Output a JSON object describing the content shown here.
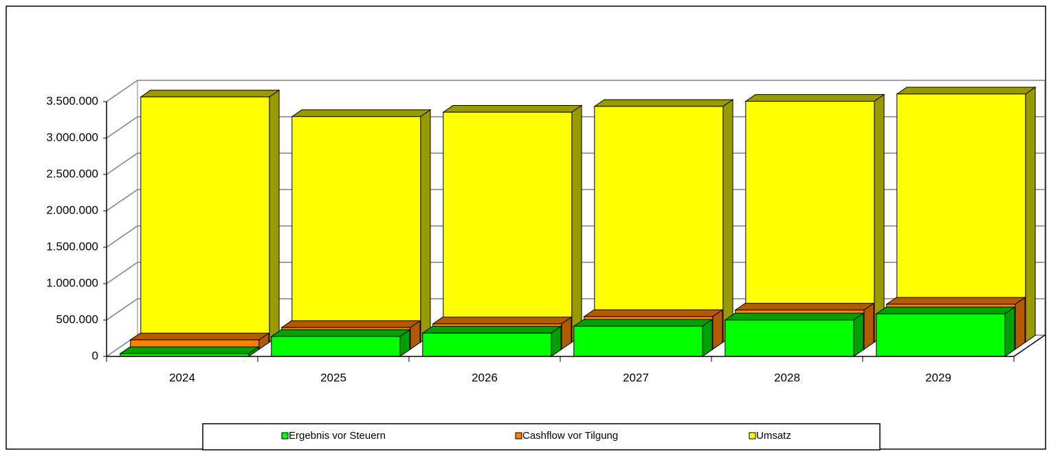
{
  "chart_data": {
    "type": "bar3d",
    "categories": [
      "2024",
      "2025",
      "2026",
      "2027",
      "2028",
      "2029"
    ],
    "series": [
      {
        "name": "Ergebnis vor Steuern",
        "color": "#00ff00",
        "side": "#00a000",
        "values": [
          38000,
          274000,
          320000,
          415000,
          500000,
          585000
        ]
      },
      {
        "name": "Cashflow vor Tilgung",
        "color": "#ff8000",
        "side": "#b35900",
        "values": [
          130000,
          300000,
          350000,
          450000,
          540000,
          620000
        ]
      },
      {
        "name": "Umsatz",
        "color": "#ffff00",
        "side": "#999900",
        "values": [
          3370000,
          3100000,
          3160000,
          3240000,
          3310000,
          3410000
        ]
      }
    ],
    "ylim": [
      0,
      3500000
    ],
    "yticks": [
      0,
      {
        "value": 500000,
        "label": "500.000"
      },
      {
        "value": 1000000,
        "label": "1.000.000"
      },
      {
        "value": 1500000,
        "label": "1.500.000"
      },
      {
        "value": 2000000,
        "label": "2.000.000"
      },
      {
        "value": 2500000,
        "label": "2.500.000"
      },
      {
        "value": 3000000,
        "label": "3.000.000"
      },
      {
        "value": 3500000,
        "label": "3.500.000"
      }
    ],
    "grid": true
  }
}
